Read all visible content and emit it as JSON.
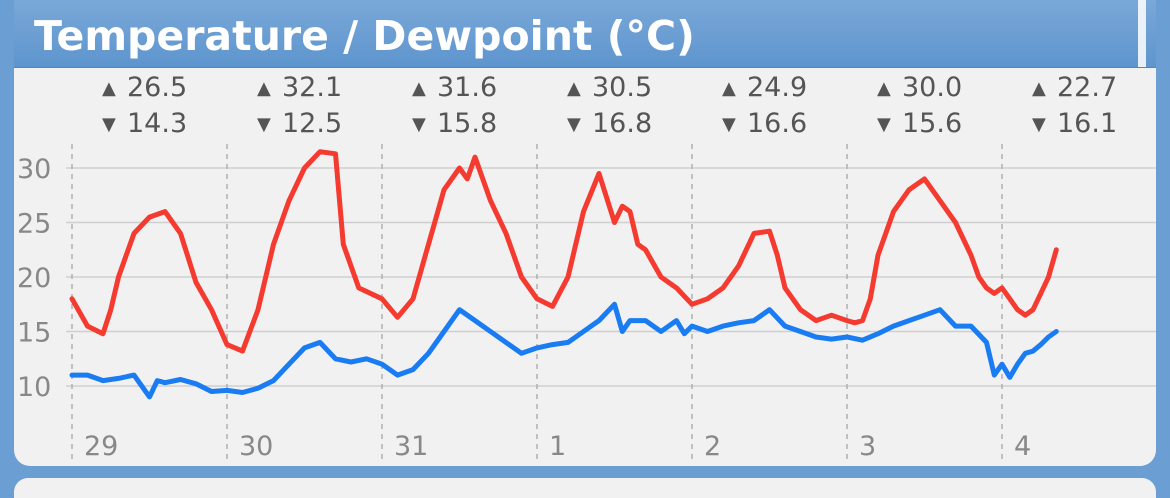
{
  "title": "Temperature / Dewpoint (°C)",
  "daily": [
    {
      "max": "26.5",
      "min": "14.3"
    },
    {
      "max": "32.1",
      "min": "12.5"
    },
    {
      "max": "31.6",
      "min": "15.8"
    },
    {
      "max": "30.5",
      "min": "16.8"
    },
    {
      "max": "24.9",
      "min": "16.6"
    },
    {
      "max": "30.0",
      "min": "15.6"
    },
    {
      "max": "22.7",
      "min": "16.1"
    }
  ],
  "colors": {
    "temperature": "#f53a30",
    "dewpoint": "#1a7cf2",
    "grid": "#cfcfcf",
    "text": "#888888"
  },
  "chart_data": {
    "type": "line",
    "title": "Temperature / Dewpoint (°C)",
    "xlabel": "",
    "ylabel": "",
    "x_tick_labels": [
      "29",
      "30",
      "31",
      "1",
      "2",
      "3",
      "4"
    ],
    "y_ticks": [
      10,
      15,
      20,
      25,
      30
    ],
    "ylim": [
      7.5,
      33
    ],
    "xlim_days": [
      0,
      7.2
    ],
    "grid": "horizontal solid, vertical dashed at day boundaries",
    "series": [
      {
        "color": "#f53a30",
        "x": [
          0.0,
          0.1,
          0.2,
          0.25,
          0.3,
          0.4,
          0.5,
          0.6,
          0.7,
          0.8,
          0.9,
          1.0,
          1.1,
          1.2,
          1.3,
          1.4,
          1.5,
          1.6,
          1.7,
          1.75,
          1.85,
          2.0,
          2.1,
          2.2,
          2.3,
          2.4,
          2.5,
          2.55,
          2.6,
          2.7,
          2.8,
          2.9,
          3.0,
          3.1,
          3.2,
          3.3,
          3.4,
          3.5,
          3.55,
          3.6,
          3.65,
          3.7,
          3.8,
          3.9,
          4.0,
          4.1,
          4.2,
          4.3,
          4.4,
          4.5,
          4.55,
          4.6,
          4.7,
          4.8,
          4.9,
          5.0,
          5.05,
          5.1,
          5.15,
          5.2,
          5.3,
          5.4,
          5.5,
          5.6,
          5.7,
          5.8,
          5.85,
          5.9,
          5.95,
          6.0,
          6.05,
          6.1,
          6.15,
          6.2,
          6.25,
          6.3,
          6.35
        ],
        "y": [
          18,
          15.5,
          14.8,
          17,
          20,
          24,
          25.5,
          26,
          24,
          19.5,
          17,
          13.8,
          13.2,
          17,
          23,
          27,
          30,
          31.5,
          31.3,
          23,
          19,
          18,
          16.3,
          18,
          23,
          28,
          30,
          29,
          31,
          27,
          24,
          20,
          18,
          17.3,
          20,
          26,
          29.5,
          25,
          26.5,
          26,
          23,
          22.5,
          20,
          19,
          17.5,
          18,
          19,
          21,
          24,
          24.2,
          22,
          19,
          17,
          16,
          16.5,
          16,
          15.8,
          16,
          18,
          22,
          26,
          28,
          29,
          27,
          25,
          22,
          20,
          19,
          18.5,
          19,
          18,
          17,
          16.5,
          17,
          18.5,
          20,
          22.5
        ]
      },
      {
        "color": "#1a7cf2",
        "x": [
          0.0,
          0.1,
          0.2,
          0.3,
          0.4,
          0.5,
          0.55,
          0.6,
          0.7,
          0.8,
          0.9,
          1.0,
          1.1,
          1.2,
          1.3,
          1.4,
          1.5,
          1.6,
          1.7,
          1.8,
          1.9,
          2.0,
          2.1,
          2.2,
          2.3,
          2.4,
          2.5,
          2.6,
          2.7,
          2.8,
          2.9,
          3.0,
          3.1,
          3.2,
          3.3,
          3.4,
          3.5,
          3.55,
          3.6,
          3.7,
          3.8,
          3.9,
          3.95,
          4.0,
          4.1,
          4.2,
          4.3,
          4.4,
          4.5,
          4.6,
          4.7,
          4.8,
          4.9,
          5.0,
          5.1,
          5.2,
          5.3,
          5.4,
          5.5,
          5.6,
          5.7,
          5.8,
          5.9,
          5.95,
          6.0,
          6.05,
          6.1,
          6.15,
          6.2,
          6.25,
          6.3,
          6.35
        ],
        "y": [
          11,
          11,
          10.5,
          10.7,
          11,
          9,
          10.5,
          10.3,
          10.6,
          10.2,
          9.5,
          9.6,
          9.4,
          9.8,
          10.5,
          12,
          13.5,
          14,
          12.5,
          12.2,
          12.5,
          12,
          11,
          11.5,
          13,
          15,
          17,
          16,
          15,
          14,
          13,
          13.5,
          13.8,
          14,
          15,
          16,
          17.5,
          15,
          16,
          16,
          15,
          16,
          14.8,
          15.5,
          15,
          15.5,
          15.8,
          16,
          17,
          15.5,
          15,
          14.5,
          14.3,
          14.5,
          14.2,
          14.8,
          15.5,
          16,
          16.5,
          17,
          15.5,
          15.5,
          14,
          11,
          12,
          10.8,
          12,
          13,
          13.2,
          13.8,
          14.5,
          15
        ]
      }
    ]
  }
}
